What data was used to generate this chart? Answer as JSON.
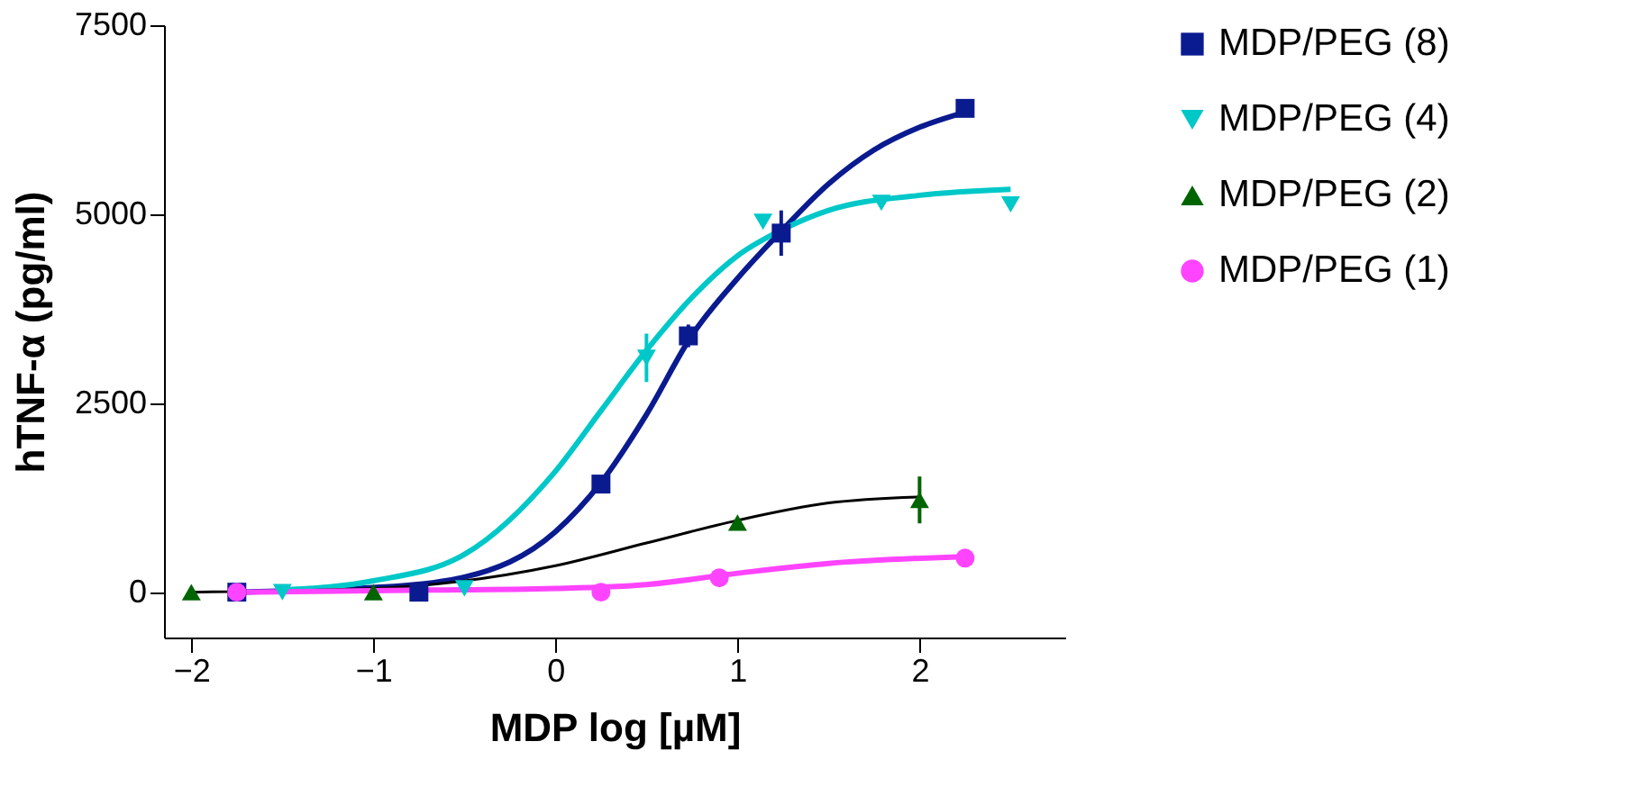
{
  "chart_data": {
    "type": "scatter",
    "xlabel": "MDP log [µM]",
    "ylabel": "hTNF-α (pg/ml)",
    "xlim": [
      -2.15,
      2.8
    ],
    "ylim": [
      -600,
      7500
    ],
    "xticks": [
      -2,
      -1,
      0,
      1,
      2
    ],
    "yticks": [
      0,
      2500,
      5000,
      7500
    ],
    "grid": false,
    "legend": "right",
    "series": [
      {
        "name": "MDP/PEG (8)",
        "color": "#0a1a8f",
        "marker": "square",
        "x": [
          -1.75,
          -0.75,
          0.25,
          0.73,
          1.24,
          2.25
        ],
        "values": [
          0,
          0,
          1430,
          3390,
          4750,
          6400
        ],
        "errors": [
          null,
          null,
          null,
          150,
          300,
          null
        ]
      },
      {
        "name": "MDP/PEG (4)",
        "color": "#00c8c8",
        "marker": "triangle-down",
        "x": [
          -1.5,
          -0.5,
          0.5,
          1.14,
          1.79,
          2.5
        ],
        "values": [
          0,
          50,
          3100,
          4900,
          5150,
          5130
        ],
        "errors": [
          null,
          null,
          320,
          null,
          null,
          null
        ]
      },
      {
        "name": "MDP/PEG (2)",
        "color": "#006400",
        "marker": "triangle",
        "x": [
          -2,
          -1,
          1,
          2
        ],
        "values": [
          0,
          0,
          920,
          1220
        ],
        "errors": [
          null,
          null,
          null,
          310
        ]
      },
      {
        "name": "MDP/PEG (1)",
        "color": "#ff44ff",
        "marker": "circle",
        "x": [
          -1.75,
          0.25,
          0.9,
          2.25
        ],
        "values": [
          0,
          0,
          190,
          450
        ]
      },
      {
        "type": "line",
        "color": "#0a1a8f",
        "x": [
          -1.75,
          -1,
          -0.5,
          0,
          0.25,
          0.5,
          0.75,
          1.0,
          1.25,
          1.5,
          1.75,
          2.0,
          2.25
        ],
        "values": [
          0,
          60,
          200,
          800,
          1450,
          2350,
          3400,
          4150,
          4800,
          5400,
          5850,
          6150,
          6350
        ]
      },
      {
        "type": "line",
        "color": "#00c8c8",
        "x": [
          -1.5,
          -1,
          -0.5,
          0,
          0.25,
          0.5,
          0.75,
          1.0,
          1.25,
          1.5,
          2.0,
          2.5
        ],
        "values": [
          30,
          150,
          500,
          1600,
          2400,
          3200,
          3900,
          4450,
          4800,
          5050,
          5250,
          5330
        ]
      },
      {
        "type": "line",
        "color": "#000000",
        "x": [
          -2,
          -1,
          0,
          0.5,
          1.0,
          1.5,
          2.0
        ],
        "values": [
          0,
          50,
          350,
          650,
          950,
          1180,
          1260
        ]
      },
      {
        "type": "line",
        "color": "#ff44ff",
        "x": [
          -1.75,
          -1,
          0,
          0.5,
          1.0,
          1.5,
          2.25
        ],
        "values": [
          0,
          20,
          50,
          100,
          250,
          380,
          470
        ]
      }
    ]
  }
}
